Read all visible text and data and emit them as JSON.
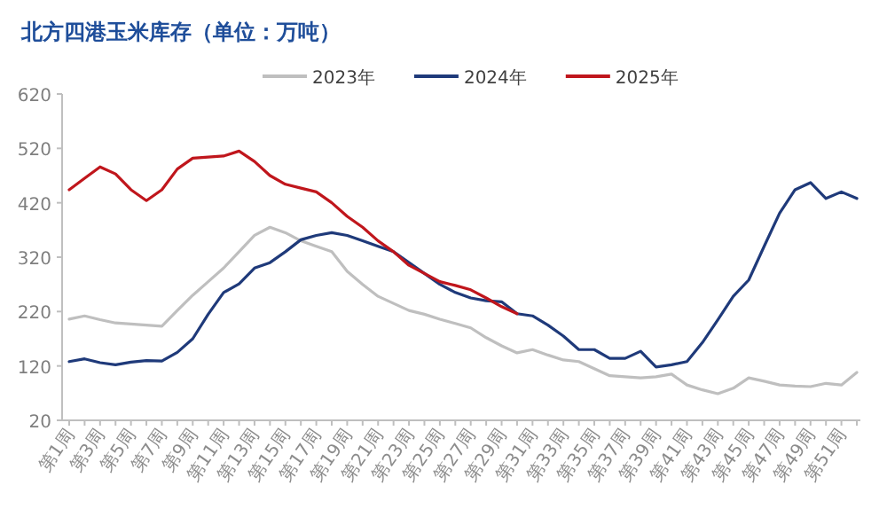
{
  "chart_data": {
    "type": "line",
    "title": "北方四港玉米库存（单位：万吨）",
    "categories": [
      "第1周",
      null,
      "第3周",
      null,
      "第5周",
      null,
      "第7周",
      null,
      "第9周",
      null,
      "第11周",
      null,
      "第13周",
      null,
      "第15周",
      null,
      "第17周",
      null,
      "第19周",
      null,
      "第21周",
      null,
      "第23周",
      null,
      "第25周",
      null,
      "第27周",
      null,
      "第29周",
      null,
      "第31周",
      null,
      "第33周",
      null,
      "第35周",
      null,
      "第37周",
      null,
      "第39周",
      null,
      "第41周",
      null,
      "第43周",
      null,
      "第45周",
      null,
      "第47周",
      null,
      "第49周",
      null,
      "第51周",
      null
    ],
    "series": [
      {
        "name": "2023年",
        "color": "#bfbfbf",
        "values": [
          206,
          212,
          205,
          199,
          197,
          195,
          193,
          222,
          250,
          275,
          300,
          330,
          360,
          375,
          365,
          350,
          340,
          330,
          294,
          270,
          248,
          235,
          222,
          215,
          206,
          198,
          190,
          172,
          157,
          144,
          150,
          140,
          131,
          128,
          115,
          102,
          100,
          98,
          100,
          105,
          85,
          76,
          69,
          79,
          98,
          92,
          85,
          83,
          82,
          88,
          85,
          108
        ]
      },
      {
        "name": "2024年",
        "color": "#1f3a7a",
        "values": [
          128,
          133,
          126,
          122,
          127,
          130,
          129,
          145,
          170,
          215,
          255,
          271,
          300,
          310,
          330,
          352,
          360,
          365,
          360,
          350,
          340,
          330,
          310,
          290,
          270,
          255,
          245,
          240,
          238,
          216,
          212,
          195,
          175,
          150,
          150,
          134,
          134,
          147,
          118,
          122,
          128,
          163,
          205,
          248,
          278,
          340,
          401,
          444,
          457,
          428,
          440,
          428
        ]
      },
      {
        "name": "2025年",
        "color": "#c0161c",
        "values": [
          444,
          465,
          486,
          473,
          444,
          424,
          444,
          482,
          502,
          504,
          506,
          515,
          496,
          470,
          454,
          447,
          440,
          420,
          395,
          375,
          350,
          330,
          305,
          290,
          275,
          268,
          260,
          245,
          229,
          216,
          null,
          null,
          null,
          null,
          null,
          null,
          null,
          null,
          null,
          null,
          null,
          null,
          null,
          null,
          null,
          null,
          null,
          null,
          null,
          null,
          null,
          null
        ]
      }
    ],
    "ylim": [
      20,
      620
    ],
    "yticks": [
      20,
      120,
      220,
      320,
      420,
      520,
      620
    ],
    "legend": "top",
    "grid": false
  }
}
